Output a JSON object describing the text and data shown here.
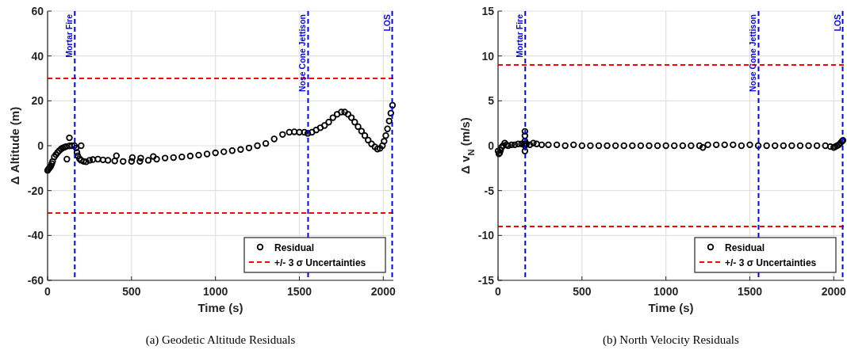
{
  "chart_data": [
    {
      "type": "scatter",
      "xlabel": "Time (s)",
      "ylabel": "Δ Altitude (m)",
      "annotations": [
        "(a)  Geodetic Altitude Residuals"
      ],
      "x": [
        0,
        5,
        10,
        15,
        20,
        25,
        30,
        40,
        50,
        60,
        70,
        80,
        90,
        100,
        110,
        115,
        130,
        130,
        145,
        160,
        170,
        175,
        180,
        190,
        200,
        200,
        215,
        230,
        250,
        270,
        300,
        330,
        360,
        400,
        410,
        450,
        500,
        505,
        550,
        555,
        600,
        630,
        650,
        700,
        750,
        800,
        850,
        900,
        950,
        1000,
        1050,
        1100,
        1150,
        1200,
        1250,
        1300,
        1350,
        1400,
        1440,
        1470,
        1500,
        1530,
        1550,
        1575,
        1600,
        1625,
        1650,
        1675,
        1700,
        1725,
        1750,
        1770,
        1790,
        1810,
        1830,
        1850,
        1870,
        1890,
        1910,
        1930,
        1950,
        1965,
        1980,
        1995,
        2005,
        2015,
        2025,
        2035,
        2045,
        2055
      ],
      "series": [
        {
          "name": "Residual",
          "color": "#000000",
          "values": [
            -11,
            -10.5,
            -10,
            -9.5,
            -9,
            -8,
            -7,
            -5,
            -4,
            -3,
            -2.2,
            -1.5,
            -1,
            -0.7,
            -0.4,
            -6,
            -0.1,
            3.5,
            0,
            0,
            -1,
            -3,
            -4.5,
            -5.8,
            -6.5,
            0,
            -7,
            -7.2,
            -6.5,
            -6.2,
            -6,
            -6.3,
            -6.5,
            -6.8,
            -4.5,
            -7,
            -7,
            -5.3,
            -7,
            -5.5,
            -6.5,
            -4.8,
            -6,
            -5.5,
            -5.3,
            -5,
            -4.6,
            -4.2,
            -3.7,
            -3.2,
            -2.7,
            -2.2,
            -1.7,
            -1,
            0,
            1,
            3,
            5,
            6,
            6.2,
            6,
            6,
            5.5,
            6,
            7,
            8,
            9,
            10.5,
            12.5,
            14,
            15,
            15,
            14,
            12.5,
            10.5,
            8.5,
            6.5,
            4.5,
            2.5,
            0.8,
            -0.5,
            -1.5,
            -1.2,
            0,
            2,
            4.5,
            7.5,
            11,
            14.5,
            18
          ]
        }
      ],
      "marker": "circle",
      "xlim": [
        0,
        2060
      ],
      "ylim": [
        -60,
        60
      ],
      "xticks": [
        0,
        500,
        1000,
        1500,
        2000
      ],
      "yticks": [
        -60,
        -40,
        -20,
        0,
        20,
        40,
        60
      ],
      "grid": true,
      "legend": "bottom right",
      "ref_lines": [
        {
          "axis": "x",
          "value": 162,
          "label": "Mortar Fire",
          "color": "#0000ff",
          "line_style": "dashed"
        },
        {
          "axis": "x",
          "value": 1552,
          "label": "Nose Cone Jettison",
          "color": "#0000ff",
          "line_style": "dashed"
        },
        {
          "axis": "x",
          "value": 2053,
          "label": "LOS",
          "color": "#0000ff",
          "line_style": "dashed"
        },
        {
          "axis": "y",
          "value": 30,
          "label": "+/- 3 σ Uncertainties",
          "color": "#ff0000",
          "line_style": "dashed"
        },
        {
          "axis": "y",
          "value": -30,
          "color": "#ff0000",
          "line_style": "dashed"
        }
      ]
    },
    {
      "type": "scatter",
      "xlabel": "Time (s)",
      "ylabel": "Δ v$_{N}$ (m/s)",
      "annotations": [
        "(b)  North Velocity Residuals"
      ],
      "x": [
        0,
        5,
        10,
        15,
        20,
        30,
        40,
        50,
        60,
        80,
        100,
        120,
        140,
        155,
        160,
        160,
        160,
        160,
        160,
        165,
        170,
        190,
        210,
        230,
        260,
        300,
        350,
        400,
        450,
        500,
        550,
        600,
        650,
        700,
        750,
        800,
        850,
        900,
        950,
        1000,
        1050,
        1100,
        1150,
        1200,
        1220,
        1250,
        1300,
        1350,
        1400,
        1450,
        1500,
        1550,
        1600,
        1650,
        1700,
        1750,
        1800,
        1850,
        1900,
        1950,
        1980,
        2000,
        2010,
        2020,
        2030,
        2040,
        2050,
        2055
      ],
      "series": [
        {
          "name": "Residual",
          "color": "#000000",
          "values": [
            -0.6,
            -0.9,
            -0.8,
            -0.5,
            -0.2,
            0,
            0.3,
            0.1,
            0,
            0.1,
            0.1,
            0.2,
            0.2,
            0.2,
            1.6,
            1.1,
            0.5,
            0,
            -0.6,
            0.2,
            0.2,
            0.1,
            0.3,
            0.2,
            0.1,
            0.1,
            0.1,
            0,
            0.1,
            0,
            0,
            0,
            0,
            0,
            0,
            0,
            0,
            0,
            0,
            0,
            0,
            0,
            0,
            0,
            -0.2,
            0.1,
            0.1,
            0.1,
            0.1,
            0,
            0.1,
            0,
            0,
            0,
            0,
            0,
            0,
            0,
            0,
            0,
            -0.1,
            -0.2,
            -0.1,
            0,
            0.1,
            0.3,
            0.5,
            0.6
          ]
        }
      ],
      "marker": "circle",
      "xlim": [
        0,
        2060
      ],
      "ylim": [
        -15,
        15
      ],
      "xticks": [
        0,
        500,
        1000,
        1500,
        2000
      ],
      "yticks": [
        -15,
        -10,
        -5,
        0,
        5,
        10,
        15
      ],
      "grid": true,
      "legend": "bottom right",
      "ref_lines": [
        {
          "axis": "x",
          "value": 162,
          "label": "Mortar Fire",
          "color": "#0000ff",
          "line_style": "dashed"
        },
        {
          "axis": "x",
          "value": 1552,
          "label": "Nose Cone Jettison",
          "color": "#0000ff",
          "line_style": "dashed"
        },
        {
          "axis": "x",
          "value": 2053,
          "label": "LOS",
          "color": "#0000ff",
          "line_style": "dashed"
        },
        {
          "axis": "y",
          "value": 9,
          "label": "+/- 3 σ Uncertainties",
          "color": "#ff0000",
          "line_style": "dashed"
        },
        {
          "axis": "y",
          "value": -9,
          "color": "#ff0000",
          "line_style": "dashed"
        }
      ]
    }
  ]
}
